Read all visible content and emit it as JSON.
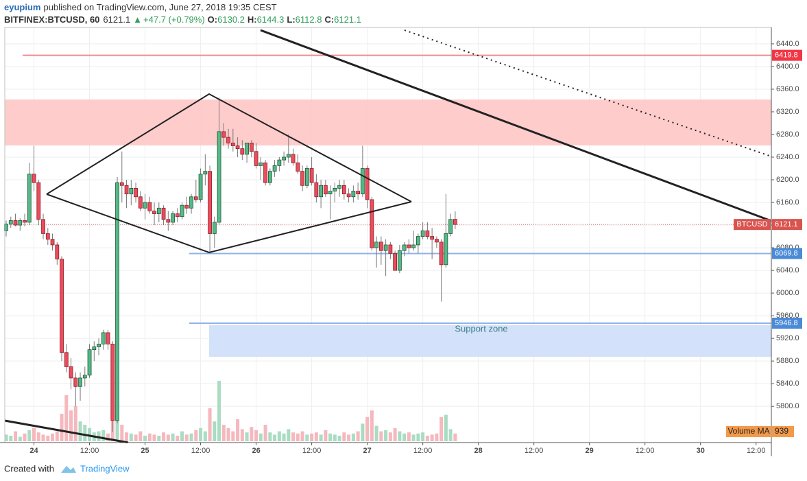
{
  "header": {
    "author": "eyupium",
    "published": "published on TradingView.com, June 27, 2018 19:35 CEST",
    "symbol": "BITFINEX:BTCUSD, 60",
    "change": "+47.7 (+0.79%)",
    "ohlc_labels": [
      "O:",
      "H:",
      "L:",
      "C:"
    ]
  },
  "footer": {
    "created": "Created with",
    "brand": "TradingView"
  },
  "chart_data": {
    "type": "candlestick",
    "up_color": "#53b987",
    "down_color": "#eb4d5c",
    "xlim": [
      -0.3,
      165.3
    ],
    "xticks": [
      {
        "value": 6,
        "label": "24"
      },
      {
        "value": 18,
        "label": "12:00"
      },
      {
        "value": 30,
        "label": "25"
      },
      {
        "value": 42,
        "label": "12:00"
      },
      {
        "value": 54,
        "label": "26"
      },
      {
        "value": 66,
        "label": "12:00"
      },
      {
        "value": 78,
        "label": "27"
      },
      {
        "value": 90,
        "label": "12:00"
      },
      {
        "value": 102,
        "label": "28"
      },
      {
        "value": 114,
        "label": "12:00"
      },
      {
        "value": 126,
        "label": "29"
      },
      {
        "value": 138,
        "label": "12:00"
      },
      {
        "value": 150,
        "label": "30"
      },
      {
        "value": 162,
        "label": "12:00"
      }
    ],
    "ylim": [
      5736,
      6469
    ],
    "yticks": [
      {
        "value": 5800,
        "label": "5800.0"
      },
      {
        "value": 5840,
        "label": "5840.0"
      },
      {
        "value": 5880,
        "label": "5880.0"
      },
      {
        "value": 5920,
        "label": "5920.0"
      },
      {
        "value": 5960,
        "label": "5960.0"
      },
      {
        "value": 6000,
        "label": "6000.0"
      },
      {
        "value": 6040,
        "label": "6040.0"
      },
      {
        "value": 6080,
        "label": "6080.0"
      },
      {
        "value": 6120,
        "label": "6120.0"
      },
      {
        "value": 6160,
        "label": "6160.0"
      },
      {
        "value": 6200,
        "label": "6200.0"
      },
      {
        "value": 6240,
        "label": "6240.0"
      },
      {
        "value": 6280,
        "label": "6280.0"
      },
      {
        "value": 6320,
        "label": "6320.0"
      },
      {
        "value": 6360,
        "label": "6360.0"
      },
      {
        "value": 6400,
        "label": "6400.0"
      },
      {
        "value": 6440,
        "label": "6440.0"
      }
    ],
    "grid": true,
    "last_price_label": "BTCUSD",
    "hlines": [
      {
        "value": 6419.8,
        "color": "#f08c8c",
        "tag": "#f23645"
      },
      {
        "value": 6069.8,
        "color": "#8fb3e8",
        "tag": "#4a8ad6"
      },
      {
        "value": 5946.8,
        "color": "#8fb3e8",
        "tag": "#4a8ad6"
      }
    ],
    "annotation": "Support zone",
    "volume_ma": {
      "label": "Volume MA",
      "value": 939
    },
    "candles": [
      [
        6110,
        6128,
        6100,
        6122
      ],
      [
        6122,
        6135,
        6115,
        6128
      ],
      [
        6128,
        6140,
        6118,
        6120
      ],
      [
        6120,
        6132,
        6110,
        6128
      ],
      [
        6128,
        6140,
        6118,
        6125
      ],
      [
        6125,
        6230,
        6120,
        6210
      ],
      [
        6210,
        6260,
        6180,
        6195
      ],
      [
        6195,
        6200,
        6120,
        6130
      ],
      [
        6130,
        6140,
        6095,
        6105
      ],
      [
        6105,
        6115,
        6085,
        6095
      ],
      [
        6095,
        6105,
        6075,
        6085
      ],
      [
        6085,
        6090,
        6050,
        6060
      ],
      [
        6060,
        6065,
        5880,
        5895
      ],
      [
        5895,
        5910,
        5860,
        5870
      ],
      [
        5870,
        5885,
        5830,
        5850
      ],
      [
        5850,
        5860,
        5800,
        5835
      ],
      [
        5835,
        5860,
        5810,
        5850
      ],
      [
        5850,
        5870,
        5835,
        5855
      ],
      [
        5855,
        5910,
        5850,
        5900
      ],
      [
        5900,
        5915,
        5880,
        5905
      ],
      [
        5905,
        5920,
        5890,
        5910
      ],
      [
        5910,
        5935,
        5900,
        5930
      ],
      [
        5930,
        5935,
        5900,
        5910
      ],
      [
        5910,
        5915,
        5755,
        5775
      ],
      [
        5775,
        6205,
        5770,
        6195
      ],
      [
        6195,
        6250,
        6160,
        6190
      ],
      [
        6190,
        6200,
        6150,
        6175
      ],
      [
        6175,
        6200,
        6155,
        6185
      ],
      [
        6185,
        6195,
        6160,
        6170
      ],
      [
        6170,
        6180,
        6145,
        6150
      ],
      [
        6150,
        6175,
        6130,
        6160
      ],
      [
        6160,
        6170,
        6140,
        6145
      ],
      [
        6145,
        6160,
        6120,
        6140
      ],
      [
        6140,
        6160,
        6125,
        6150
      ],
      [
        6150,
        6155,
        6120,
        6130
      ],
      [
        6130,
        6145,
        6110,
        6125
      ],
      [
        6125,
        6145,
        6120,
        6140
      ],
      [
        6140,
        6150,
        6125,
        6135
      ],
      [
        6135,
        6160,
        6130,
        6155
      ],
      [
        6155,
        6170,
        6140,
        6150
      ],
      [
        6150,
        6175,
        6140,
        6170
      ],
      [
        6170,
        6200,
        6160,
        6165
      ],
      [
        6165,
        6220,
        6160,
        6210
      ],
      [
        6210,
        6245,
        6190,
        6215
      ],
      [
        6215,
        6225,
        6070,
        6105
      ],
      [
        6105,
        6135,
        6080,
        6125
      ],
      [
        6125,
        6345,
        6120,
        6285
      ],
      [
        6285,
        6300,
        6260,
        6275
      ],
      [
        6275,
        6290,
        6255,
        6265
      ],
      [
        6265,
        6290,
        6250,
        6260
      ],
      [
        6260,
        6275,
        6240,
        6255
      ],
      [
        6255,
        6270,
        6235,
        6245
      ],
      [
        6245,
        6265,
        6230,
        6265
      ],
      [
        6265,
        6270,
        6240,
        6250
      ],
      [
        6250,
        6265,
        6220,
        6225
      ],
      [
        6225,
        6240,
        6200,
        6230
      ],
      [
        6230,
        6235,
        6190,
        6195
      ],
      [
        6195,
        6220,
        6190,
        6215
      ],
      [
        6215,
        6235,
        6205,
        6225
      ],
      [
        6225,
        6240,
        6215,
        6235
      ],
      [
        6235,
        6250,
        6225,
        6240
      ],
      [
        6240,
        6280,
        6230,
        6245
      ],
      [
        6245,
        6255,
        6225,
        6230
      ],
      [
        6230,
        6245,
        6210,
        6215
      ],
      [
        6215,
        6225,
        6180,
        6190
      ],
      [
        6190,
        6225,
        6185,
        6220
      ],
      [
        6220,
        6240,
        6190,
        6195
      ],
      [
        6195,
        6210,
        6160,
        6170
      ],
      [
        6170,
        6200,
        6150,
        6190
      ],
      [
        6190,
        6200,
        6170,
        6175
      ],
      [
        6175,
        6190,
        6130,
        6180
      ],
      [
        6180,
        6195,
        6160,
        6185
      ],
      [
        6185,
        6200,
        6170,
        6190
      ],
      [
        6190,
        6200,
        6165,
        6175
      ],
      [
        6175,
        6185,
        6160,
        6170
      ],
      [
        6170,
        6190,
        6160,
        6180
      ],
      [
        6180,
        6195,
        6165,
        6175
      ],
      [
        6175,
        6260,
        6170,
        6220
      ],
      [
        6220,
        6225,
        6150,
        6165
      ],
      [
        6165,
        6170,
        6075,
        6080
      ],
      [
        6080,
        6100,
        6045,
        6090
      ],
      [
        6090,
        6100,
        6050,
        6075
      ],
      [
        6075,
        6095,
        6030,
        6085
      ],
      [
        6085,
        6090,
        6060,
        6070
      ],
      [
        6070,
        6075,
        6040,
        6040
      ],
      [
        6040,
        6085,
        6035,
        6075
      ],
      [
        6075,
        6090,
        6065,
        6085
      ],
      [
        6085,
        6095,
        6070,
        6080
      ],
      [
        6080,
        6110,
        6075,
        6085
      ],
      [
        6085,
        6105,
        6070,
        6100
      ],
      [
        6100,
        6125,
        6095,
        6110
      ],
      [
        6110,
        6125,
        6095,
        6100
      ],
      [
        6100,
        6115,
        6060,
        6095
      ],
      [
        6095,
        6100,
        6080,
        6090
      ],
      [
        6090,
        6095,
        5985,
        6050
      ],
      [
        6050,
        6175,
        6045,
        6105
      ],
      [
        6105,
        6140,
        6100,
        6130
      ],
      [
        6130.2,
        6144.3,
        6112.8,
        6121.1
      ]
    ],
    "volume": [
      600,
      500,
      900,
      400,
      700,
      1000,
      1200,
      800,
      600,
      500,
      700,
      900,
      2500,
      4200,
      2800,
      3200,
      1800,
      1500,
      1200,
      800,
      900,
      1000,
      700,
      3000,
      2600,
      1500,
      800,
      700,
      600,
      900,
      500,
      700,
      600,
      500,
      800,
      600,
      700,
      500,
      900,
      600,
      700,
      1000,
      1200,
      900,
      3000,
      1800,
      5500,
      1500,
      1200,
      900,
      2000,
      1100,
      800,
      1300,
      1000,
      700,
      1500,
      800,
      600,
      900,
      700,
      1100,
      800,
      700,
      900,
      600,
      700,
      800,
      600,
      1000,
      700,
      600,
      500,
      800,
      600,
      700,
      900,
      1600,
      2200,
      2800,
      1400,
      900,
      1000,
      800,
      1200,
      900,
      700,
      800,
      600,
      700,
      800,
      500,
      600,
      700,
      2200,
      2400,
      1100,
      700
    ]
  }
}
